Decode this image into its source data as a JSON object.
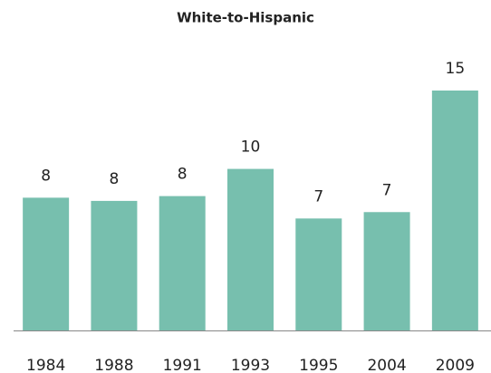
{
  "chart_data": {
    "type": "bar",
    "title": "White-to-Hispanic",
    "categories": [
      "1984",
      "1988",
      "1991",
      "1993",
      "1995",
      "2004",
      "2009"
    ],
    "values": [
      8.3,
      8.1,
      8.4,
      10.1,
      7.0,
      7.4,
      15.0
    ],
    "value_labels": [
      "8",
      "8",
      "8",
      "10",
      "7",
      "7",
      "15"
    ],
    "color": "#77bfae",
    "ylim": [
      0,
      15
    ]
  }
}
